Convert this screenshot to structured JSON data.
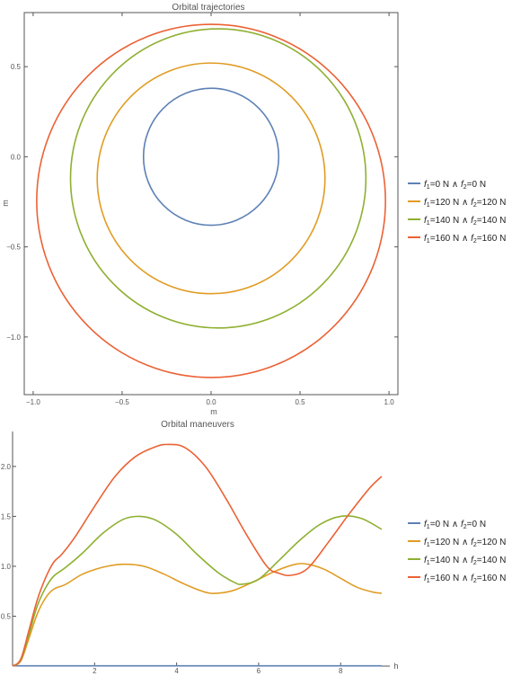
{
  "chart_data": [
    {
      "type": "line",
      "title": "Orbital trajectories",
      "xlabel": "m",
      "ylabel": "m",
      "xlim": [
        -1.05,
        1.05
      ],
      "ylim": [
        -1.32,
        0.8
      ],
      "xticks": [
        -1.0,
        -0.5,
        0.0,
        0.5,
        1.0
      ],
      "xtick_labels": [
        "−1.0",
        "−0.5",
        "0.0",
        "0.5",
        "1.0"
      ],
      "yticks": [
        -1.0,
        -0.5,
        0.0,
        0.5
      ],
      "ytick_labels": [
        "−1.0",
        "−0.5",
        "0.0",
        "0.5"
      ],
      "frame": true,
      "legend_position": "right",
      "series": [
        {
          "color": "#5E81B5",
          "circle": {
            "cx": 0.0,
            "cy": 0.0,
            "r": 0.38
          }
        },
        {
          "color": "#E19C24",
          "circle": {
            "cx": 0.0,
            "cy": -0.12,
            "r": 0.64
          }
        },
        {
          "color": "#8FB032",
          "circle": {
            "cx": 0.04,
            "cy": -0.12,
            "r": 0.83
          }
        },
        {
          "color": "#EB6235",
          "circle": {
            "cx": 0.0,
            "cy": -0.245,
            "r": 0.98
          }
        }
      ],
      "legend": [
        {
          "f1": "0",
          "f2": "0",
          "color": "#5E81B5"
        },
        {
          "f1": "120",
          "f2": "120",
          "color": "#E19C24"
        },
        {
          "f1": "140",
          "f2": "140",
          "color": "#8FB032"
        },
        {
          "f1": "160",
          "f2": "160",
          "color": "#EB6235"
        }
      ]
    },
    {
      "type": "line",
      "title": "Orbital maneuvers",
      "xlabel": "h",
      "ylabel": "",
      "xlim": [
        0,
        9.2
      ],
      "ylim": [
        0,
        2.35
      ],
      "xticks": [
        2,
        4,
        6,
        8
      ],
      "xtick_labels": [
        "2",
        "4",
        "6",
        "8"
      ],
      "yticks": [
        0.5,
        1.0,
        1.5,
        2.0
      ],
      "ytick_labels": [
        "0.5",
        "1.0",
        "1.5",
        "2.0"
      ],
      "legend_position": "right",
      "series": [
        {
          "color": "#5E81B5",
          "points": [
            [
              0,
              0.003
            ],
            [
              9,
              0.003
            ]
          ]
        },
        {
          "color": "#E19C24",
          "points": [
            [
              0,
              0
            ],
            [
              0.2,
              0.05
            ],
            [
              0.4,
              0.28
            ],
            [
              0.6,
              0.52
            ],
            [
              0.8,
              0.68
            ],
            [
              1.0,
              0.77
            ],
            [
              1.3,
              0.82
            ],
            [
              1.7,
              0.92
            ],
            [
              2.2,
              0.99
            ],
            [
              2.7,
              1.02
            ],
            [
              3.2,
              1.0
            ],
            [
              3.7,
              0.92
            ],
            [
              4.2,
              0.82
            ],
            [
              4.7,
              0.74
            ],
            [
              5.0,
              0.73
            ],
            [
              5.4,
              0.76
            ],
            [
              5.9,
              0.85
            ],
            [
              6.4,
              0.95
            ],
            [
              6.9,
              1.02
            ],
            [
              7.2,
              1.02
            ],
            [
              7.6,
              0.97
            ],
            [
              8.0,
              0.88
            ],
            [
              8.4,
              0.79
            ],
            [
              8.8,
              0.74
            ],
            [
              9.0,
              0.73
            ]
          ]
        },
        {
          "color": "#8FB032",
          "points": [
            [
              0,
              0
            ],
            [
              0.2,
              0.06
            ],
            [
              0.4,
              0.32
            ],
            [
              0.6,
              0.6
            ],
            [
              0.8,
              0.78
            ],
            [
              1.0,
              0.9
            ],
            [
              1.3,
              0.99
            ],
            [
              1.7,
              1.13
            ],
            [
              2.2,
              1.33
            ],
            [
              2.7,
              1.47
            ],
            [
              3.1,
              1.5
            ],
            [
              3.5,
              1.46
            ],
            [
              4.0,
              1.32
            ],
            [
              4.5,
              1.12
            ],
            [
              5.0,
              0.94
            ],
            [
              5.4,
              0.84
            ],
            [
              5.6,
              0.82
            ],
            [
              6.0,
              0.87
            ],
            [
              6.5,
              1.06
            ],
            [
              7.0,
              1.26
            ],
            [
              7.5,
              1.42
            ],
            [
              8.0,
              1.5
            ],
            [
              8.5,
              1.48
            ],
            [
              9.0,
              1.37
            ]
          ]
        },
        {
          "color": "#EB6235",
          "points": [
            [
              0,
              0
            ],
            [
              0.2,
              0.07
            ],
            [
              0.4,
              0.36
            ],
            [
              0.6,
              0.66
            ],
            [
              0.8,
              0.88
            ],
            [
              1.0,
              1.04
            ],
            [
              1.2,
              1.12
            ],
            [
              1.5,
              1.28
            ],
            [
              2.0,
              1.6
            ],
            [
              2.5,
              1.9
            ],
            [
              3.0,
              2.1
            ],
            [
              3.5,
              2.2
            ],
            [
              3.8,
              2.22
            ],
            [
              4.2,
              2.19
            ],
            [
              4.7,
              2.0
            ],
            [
              5.2,
              1.68
            ],
            [
              5.7,
              1.32
            ],
            [
              6.2,
              1.0
            ],
            [
              6.5,
              0.93
            ],
            [
              6.8,
              0.91
            ],
            [
              7.2,
              0.98
            ],
            [
              7.7,
              1.24
            ],
            [
              8.2,
              1.52
            ],
            [
              8.7,
              1.78
            ],
            [
              9.0,
              1.9
            ]
          ]
        }
      ],
      "legend": [
        {
          "f1": "0",
          "f2": "0",
          "color": "#5E81B5"
        },
        {
          "f1": "120",
          "f2": "120",
          "color": "#E19C24"
        },
        {
          "f1": "140",
          "f2": "140",
          "color": "#8FB032"
        },
        {
          "f1": "160",
          "f2": "160",
          "color": "#EB6235"
        }
      ]
    }
  ]
}
